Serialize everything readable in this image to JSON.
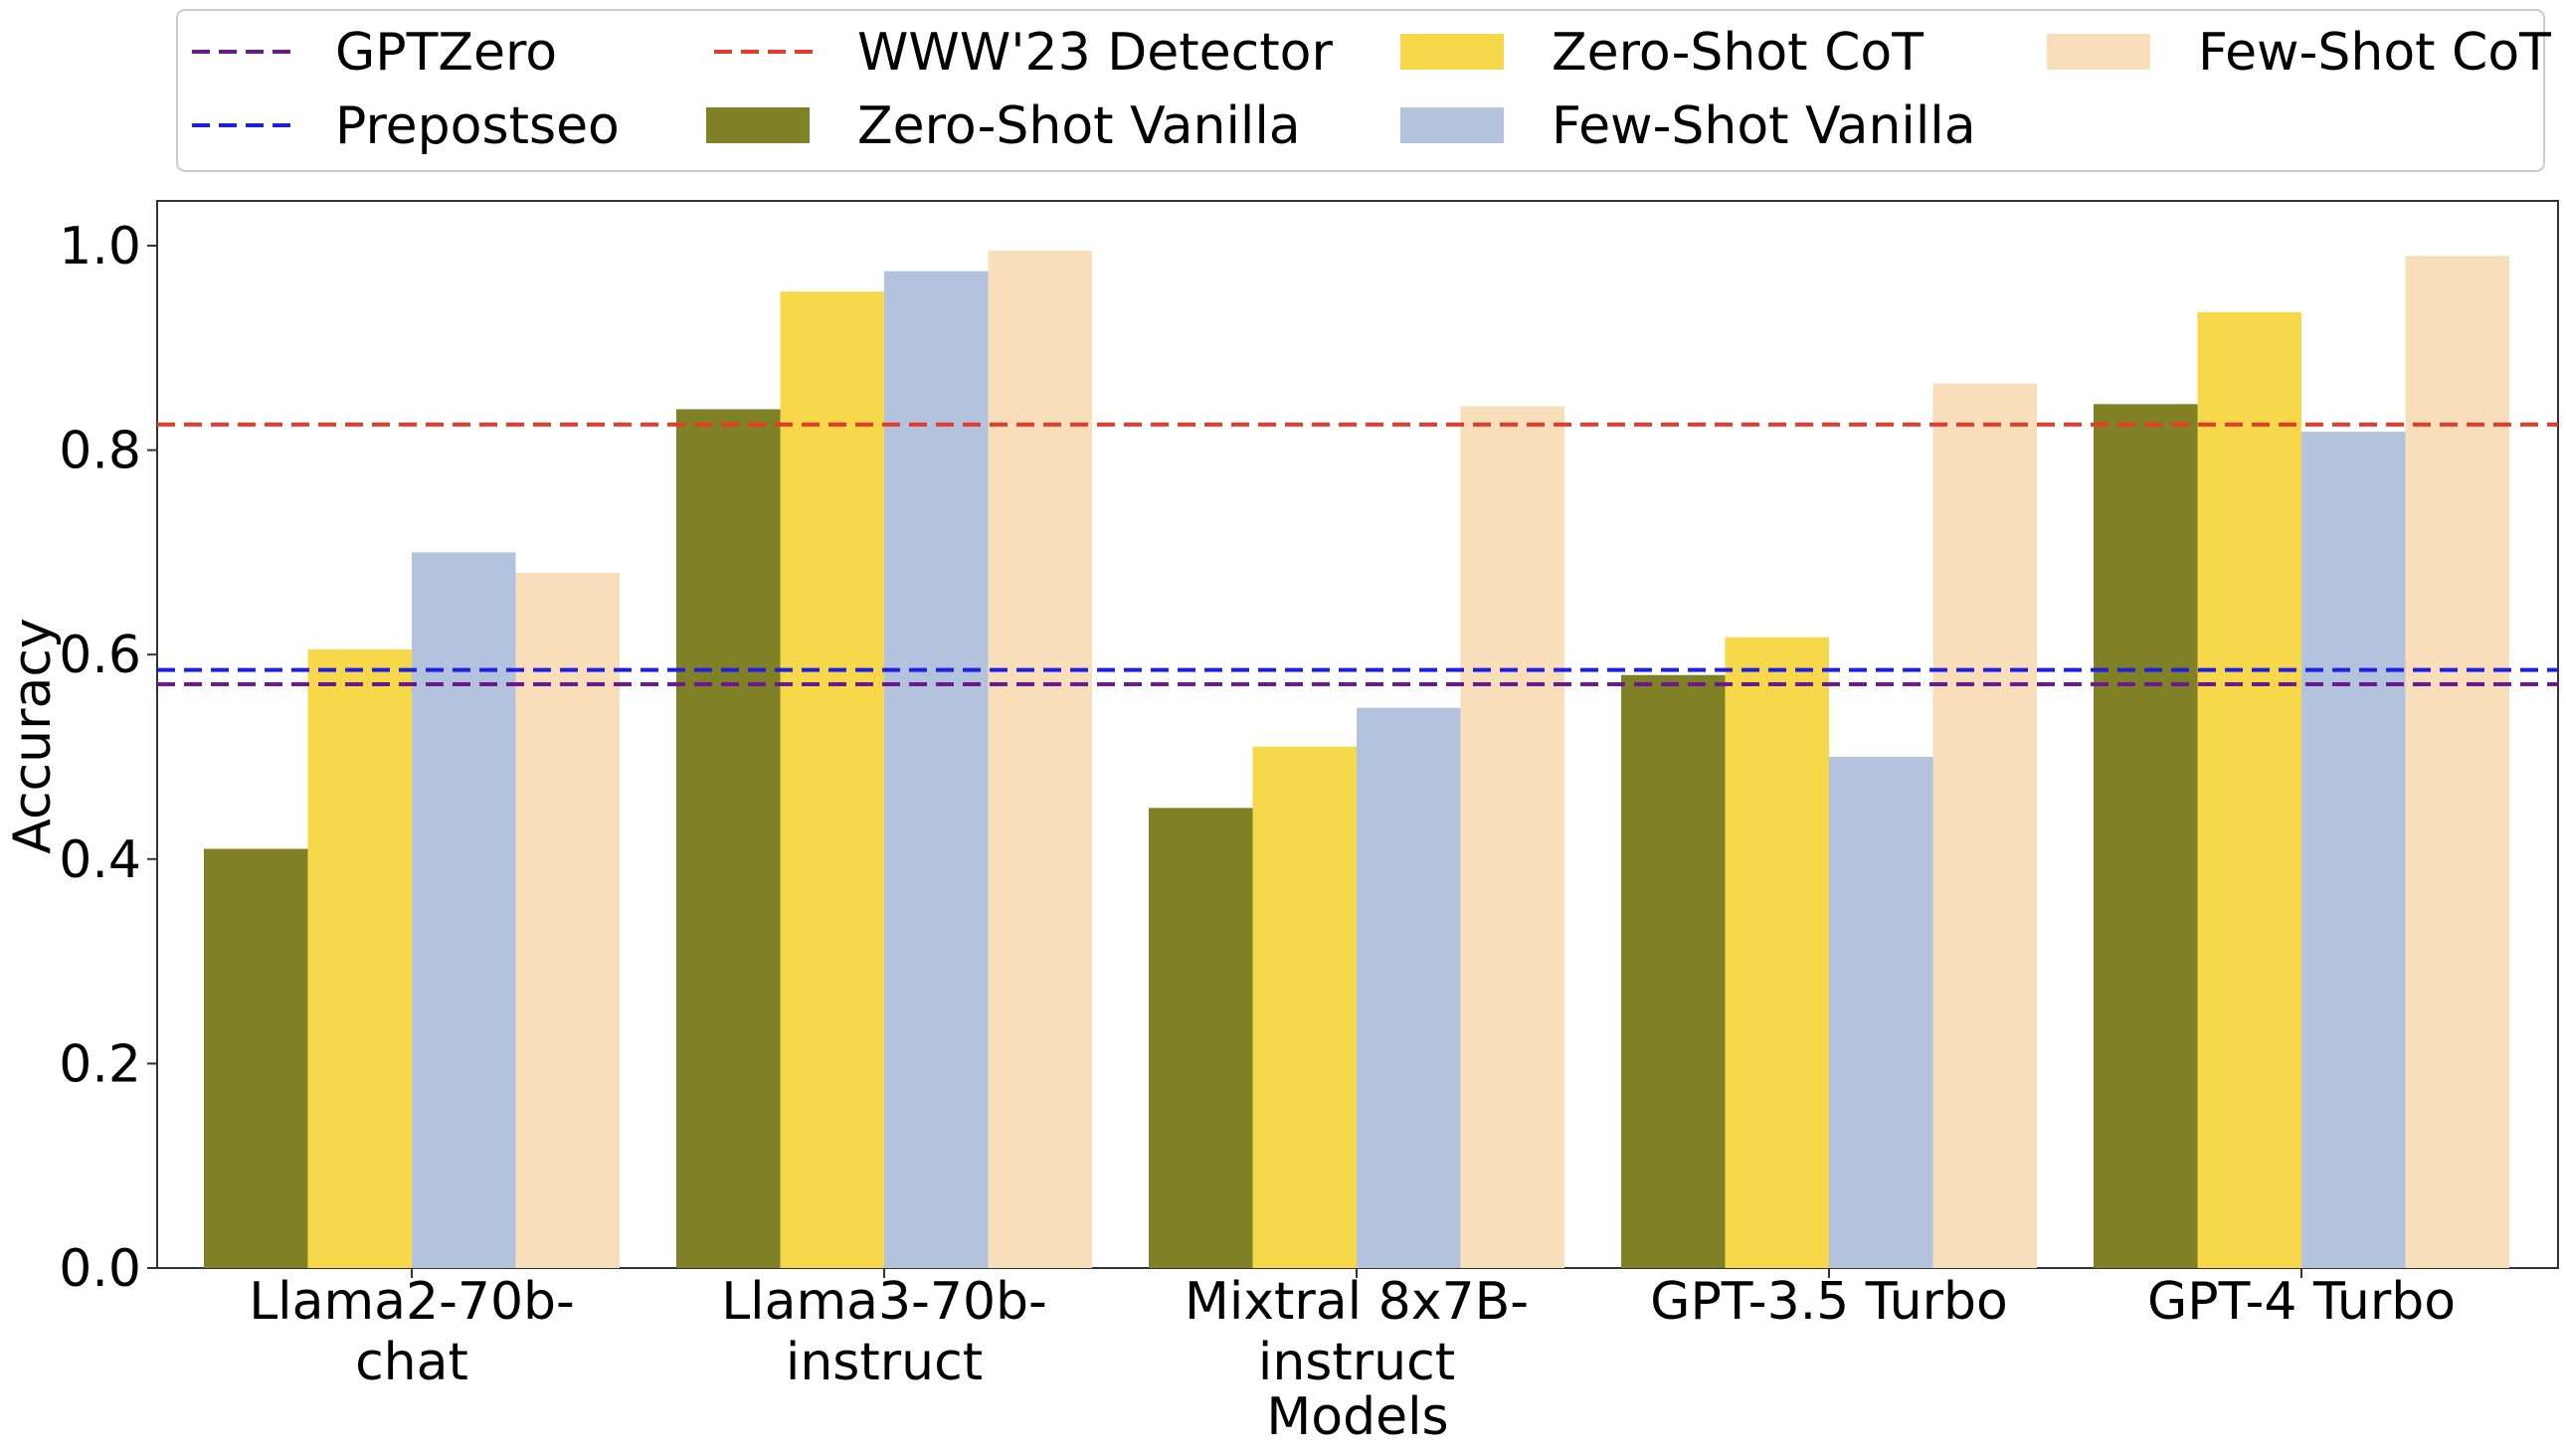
{
  "chart_data": {
    "type": "bar",
    "title": "",
    "xlabel": "Models",
    "ylabel": "Accuracy",
    "ylim": [
      0,
      1.05
    ],
    "yticks": [
      "0.0",
      "0.2",
      "0.4",
      "0.6",
      "0.8",
      "1.0"
    ],
    "categories": [
      [
        "Llama2-70b-",
        "chat"
      ],
      [
        "Llama3-70b-",
        "instruct"
      ],
      [
        "Mixtral 8x7B-",
        "instruct"
      ],
      [
        "GPT-3.5 Turbo"
      ],
      [
        "GPT-4 Turbo"
      ]
    ],
    "series": [
      {
        "name": "Zero-Shot Vanilla",
        "color": "#808026",
        "values": [
          0.41,
          0.84,
          0.45,
          0.58,
          0.845
        ]
      },
      {
        "name": "Zero-Shot CoT",
        "color": "#f6d84a",
        "values": [
          0.605,
          0.955,
          0.51,
          0.617,
          0.935
        ]
      },
      {
        "name": "Few-Shot Vanilla",
        "color": "#b3c3de",
        "values": [
          0.7,
          0.975,
          0.548,
          0.5,
          0.818
        ]
      },
      {
        "name": "Few-Shot CoT",
        "color": "#f8debb",
        "values": [
          0.68,
          0.995,
          0.843,
          0.865,
          0.99
        ]
      }
    ],
    "reference_lines": [
      {
        "name": "GPTZero",
        "color": "#6a1a8c",
        "value": 0.571
      },
      {
        "name": "Prepostseo",
        "color": "#1f1fe0",
        "value": 0.585
      },
      {
        "name": "WWW'23 Detector",
        "color": "#e8392a",
        "value": 0.825
      }
    ],
    "legend": {
      "position": "top",
      "order": [
        "GPTZero",
        "WWW'23 Detector",
        "Zero-Shot CoT",
        "Few-Shot CoT",
        "Prepostseo",
        "Zero-Shot Vanilla",
        "Few-Shot Vanilla"
      ]
    }
  }
}
